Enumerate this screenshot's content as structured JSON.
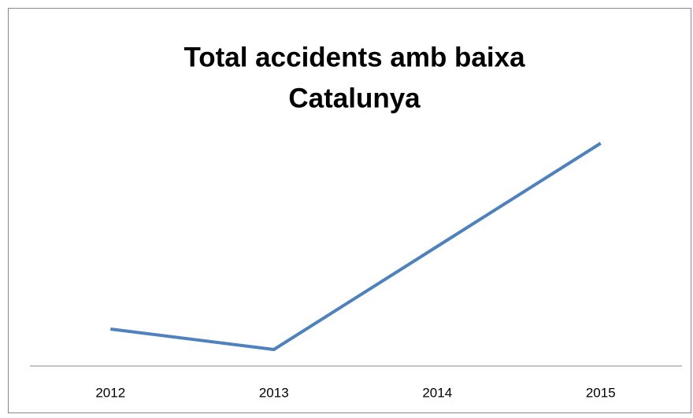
{
  "chart_data": {
    "type": "line",
    "title": [
      "Total accidents amb baixa",
      "Catalunya"
    ],
    "categories": [
      "2012",
      "2013",
      "2014",
      "2015"
    ],
    "values": [
      47,
      21,
      152,
      283
    ],
    "color": "#4f81bd",
    "ylim": [
      0,
      300
    ]
  }
}
